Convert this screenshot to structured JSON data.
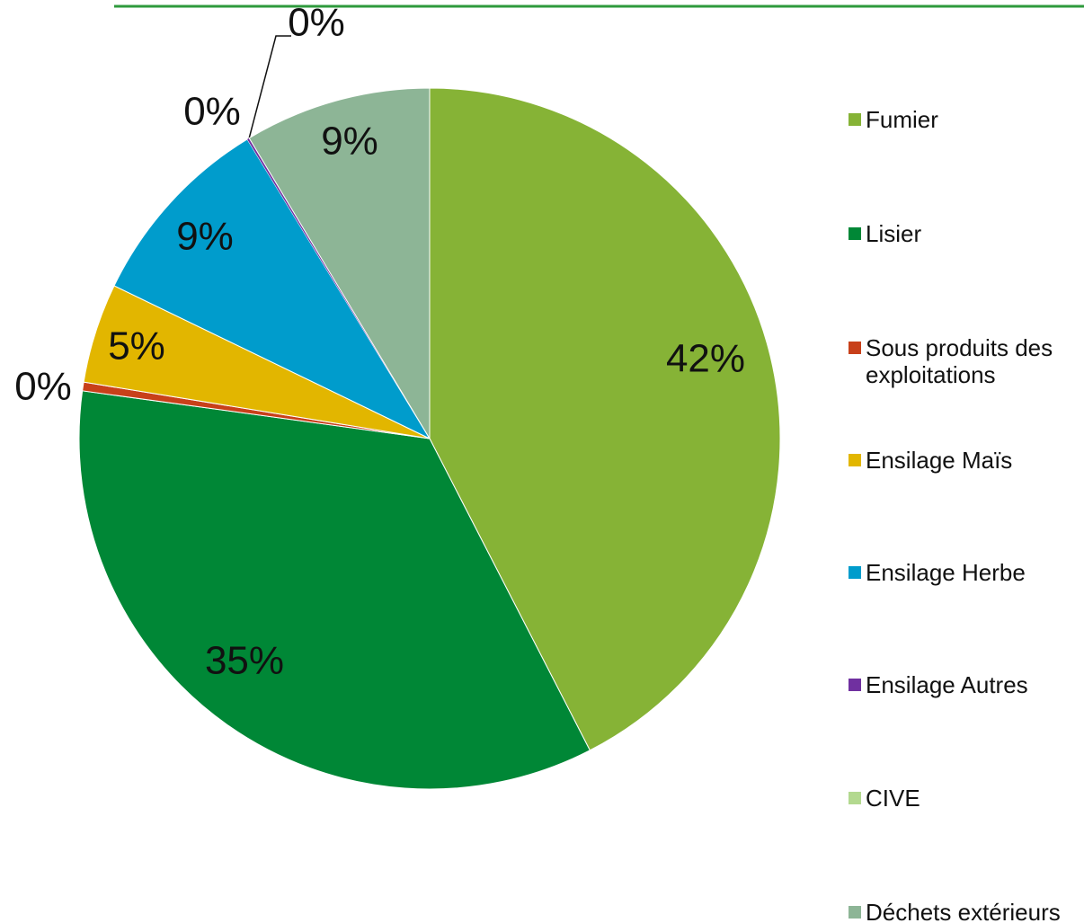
{
  "chart_data": {
    "type": "pie",
    "categories": [
      "Fumier",
      "Lisier",
      "Sous produits des exploitations",
      "Ensilage Maïs",
      "Ensilage Herbe",
      "Ensilage Autres",
      "CIVE",
      "Déchets extérieurs"
    ],
    "values": [
      42.4,
      34.7,
      0.4,
      4.6,
      9.1,
      0.1,
      0,
      8.6
    ],
    "value_labels": [
      "42%",
      "35%",
      "0%",
      "5%",
      "9%",
      "0%",
      "0%",
      "9%"
    ],
    "colors": [
      "#86b336",
      "#008736",
      "#c8401a",
      "#e2b600",
      "#009ccc",
      "#7030a0",
      "#b3d98f",
      "#8db596"
    ],
    "legend": "right"
  }
}
